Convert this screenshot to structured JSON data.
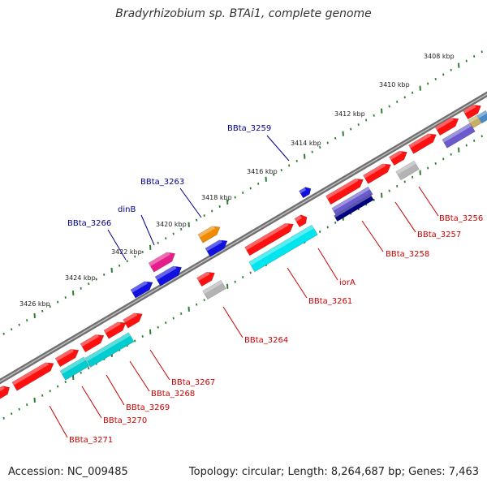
{
  "title": "Bradyrhizobium sp. BTAi1, complete genome",
  "footer": {
    "accession": "Accession: NC_009485",
    "summary": "Topology: circular; Length: 8,264,687 bp; Genes: 7,463"
  },
  "colors": {
    "backbone": "#808080",
    "tick": "#2e7d32",
    "label_forward": "#00008b",
    "label_reverse": "#cc0000"
  },
  "ruler": [
    "3408 kbp",
    "3410 kbp",
    "3412 kbp",
    "3414 kbp",
    "3416 kbp",
    "3418 kbp",
    "3420 kbp",
    "3422 kbp",
    "3424 kbp",
    "3426 kbp"
  ],
  "forward_labels": [
    "BBta_3259",
    "BBta_3263",
    "dinB",
    "BBta_3266"
  ],
  "reverse_labels": [
    "BBta_3256",
    "BBta_3257",
    "BBta_3258",
    "iorA",
    "BBta_3261",
    "BBta_3264",
    "BBta_3267",
    "BBta_3268",
    "BBta_3269",
    "BBta_3270",
    "BBta_3271"
  ]
}
